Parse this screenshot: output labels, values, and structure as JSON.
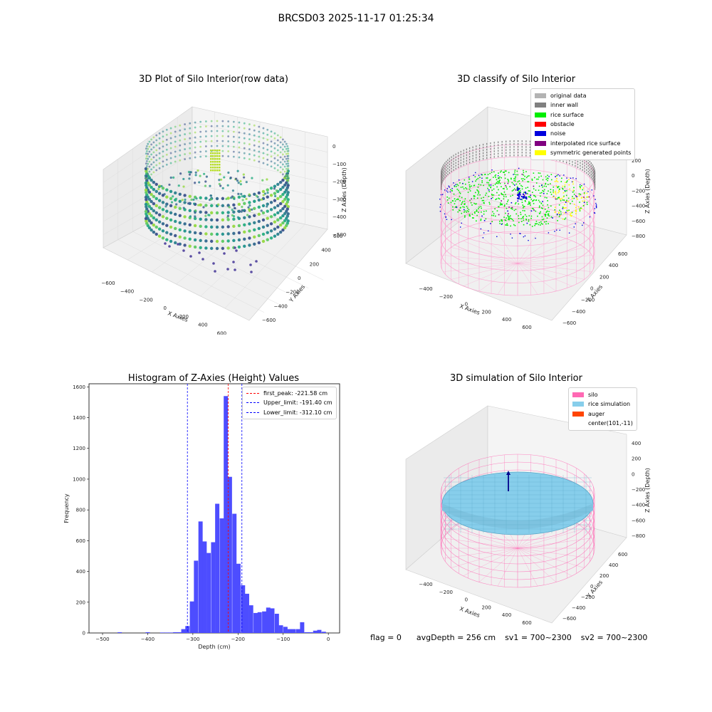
{
  "suptitle": "BRCSD03 2025-11-17 01:25:34",
  "footer": {
    "flag": "flag = 0",
    "avg": "avgDepth = 256 cm",
    "sv1": "sv1 = 700~2300",
    "sv2": "sv2 = 700~2300"
  },
  "panels": {
    "raw": {
      "title": "3D Plot of Silo Interior(row data)",
      "xlabel": "X Axies",
      "ylabel": "Y Axies",
      "zlabel": "Z Axies (Depth)",
      "x_ticks": [
        "−600",
        "−400",
        "−200",
        "0",
        "200",
        "400",
        "600",
        "800"
      ],
      "y_ticks": [
        "−600",
        "−400",
        "−200",
        "0",
        "200",
        "400",
        "600"
      ],
      "z_ticks": [
        "0",
        "−100",
        "−200",
        "−300",
        "−400",
        "−500"
      ]
    },
    "classify": {
      "title": "3D classify of Silo Interior",
      "xlabel": "X Axies",
      "ylabel": "Y Axies",
      "zlabel": "Z Axies (Depth)",
      "x_ticks": [
        "−400",
        "−200",
        "0",
        "200",
        "400",
        "600"
      ],
      "y_ticks": [
        "−600",
        "−400",
        "−200",
        "0",
        "200",
        "400",
        "600"
      ],
      "z_ticks": [
        "200",
        "0",
        "−200",
        "−400",
        "−600",
        "−800"
      ],
      "legend": [
        {
          "label": "original data",
          "color": "#b3b3b3"
        },
        {
          "label": "inner wall",
          "color": "#808080"
        },
        {
          "label": "rice surface",
          "color": "#00ee00"
        },
        {
          "label": "obstacle",
          "color": "#ff0000"
        },
        {
          "label": "noise",
          "color": "#0000dd"
        },
        {
          "label": "interpolated rice surface",
          "color": "#800080"
        },
        {
          "label": "symmetric generated points",
          "color": "#ffff00"
        }
      ]
    },
    "simulation": {
      "title": "3D simulation of Silo Interior",
      "xlabel": "X Axies",
      "ylabel": "Y Axies",
      "zlabel": "Z Axies (Depth)",
      "x_ticks": [
        "−400",
        "−200",
        "0",
        "200",
        "400",
        "600"
      ],
      "y_ticks": [
        "−600",
        "−400",
        "−200",
        "0",
        "200",
        "400",
        "600"
      ],
      "z_ticks": [
        "400",
        "200",
        "0",
        "−200",
        "−400",
        "−600",
        "−800"
      ],
      "legend": [
        {
          "label": "silo",
          "color": "#ff69b4"
        },
        {
          "label": "rice simulation",
          "color": "#87ceeb"
        },
        {
          "label": "auger",
          "color": "#ff4500"
        },
        {
          "label": "center(101,-11)",
          "color": "#ffffff"
        }
      ]
    }
  },
  "chart_data": {
    "type": "bar",
    "title": "Histogram of Z-Axies (Height) Values",
    "xlabel": "Depth (cm)",
    "ylabel": "Frequency",
    "xlim": [
      -530,
      25
    ],
    "ylim": [
      0,
      1620
    ],
    "x_ticks": [
      -500,
      -400,
      -300,
      -200,
      -100,
      0
    ],
    "x_tick_labels": [
      "−500",
      "−400",
      "−300",
      "−200",
      "−100",
      "0"
    ],
    "y_ticks": [
      0,
      200,
      400,
      600,
      800,
      1000,
      1200,
      1400,
      1600
    ],
    "bar_color": "#4d4dff",
    "bin_width": 9.4,
    "bins": [
      {
        "x": -462,
        "v": 5
      },
      {
        "x": -400,
        "v": 5
      },
      {
        "x": -368,
        "v": 3
      },
      {
        "x": -358,
        "v": 3
      },
      {
        "x": -349,
        "v": 3
      },
      {
        "x": -339,
        "v": 5
      },
      {
        "x": -330,
        "v": 5
      },
      {
        "x": -321,
        "v": 25
      },
      {
        "x": -312,
        "v": 45
      },
      {
        "x": -302,
        "v": 205
      },
      {
        "x": -293,
        "v": 470
      },
      {
        "x": -283,
        "v": 725
      },
      {
        "x": -274,
        "v": 595
      },
      {
        "x": -265,
        "v": 520
      },
      {
        "x": -255,
        "v": 590
      },
      {
        "x": -246,
        "v": 840
      },
      {
        "x": -236,
        "v": 745
      },
      {
        "x": -227,
        "v": 1540
      },
      {
        "x": -218,
        "v": 1015
      },
      {
        "x": -208,
        "v": 775
      },
      {
        "x": -199,
        "v": 450
      },
      {
        "x": -189,
        "v": 310
      },
      {
        "x": -180,
        "v": 255
      },
      {
        "x": -171,
        "v": 180
      },
      {
        "x": -161,
        "v": 130
      },
      {
        "x": -152,
        "v": 135
      },
      {
        "x": -142,
        "v": 140
      },
      {
        "x": -133,
        "v": 165
      },
      {
        "x": -124,
        "v": 160
      },
      {
        "x": -114,
        "v": 125
      },
      {
        "x": -105,
        "v": 50
      },
      {
        "x": -95,
        "v": 40
      },
      {
        "x": -86,
        "v": 25
      },
      {
        "x": -77,
        "v": 25
      },
      {
        "x": -67,
        "v": 25
      },
      {
        "x": -58,
        "v": 70
      },
      {
        "x": -48,
        "v": 5
      },
      {
        "x": -39,
        "v": 5
      },
      {
        "x": -29,
        "v": 15
      },
      {
        "x": -20,
        "v": 20
      },
      {
        "x": -10,
        "v": 8
      }
    ],
    "lines": [
      {
        "label": "first_peak: -221.58 cm",
        "x": -221.58,
        "color": "#ff0000"
      },
      {
        "label": "Upper_limit: -191.40 cm",
        "x": -191.4,
        "color": "#0000ff"
      },
      {
        "label": "Lower_limit: -312.10 cm",
        "x": -312.1,
        "color": "#0000ff"
      }
    ],
    "legend_position": "top-right",
    "grid": false
  }
}
